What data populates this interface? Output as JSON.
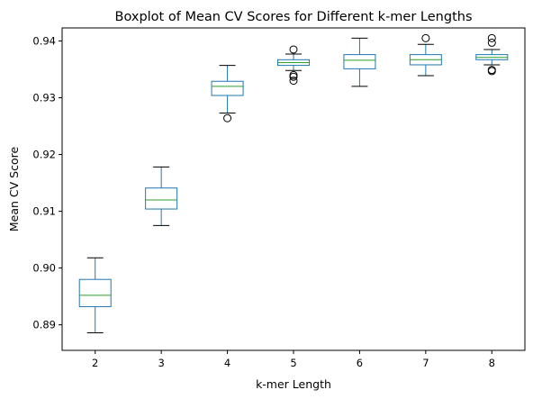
{
  "chart_data": {
    "type": "boxplot",
    "title": "Boxplot of Mean CV Scores for Different k-mer Lengths",
    "xlabel": "k-mer Length",
    "ylabel": "Mean CV Score",
    "ylim": [
      0.8855,
      0.9423
    ],
    "yticks": [
      0.89,
      0.9,
      0.91,
      0.92,
      0.93,
      0.94
    ],
    "ytick_labels": [
      "0.89",
      "0.90",
      "0.91",
      "0.92",
      "0.93",
      "0.94"
    ],
    "grid": false,
    "box_color": "#1f77b4",
    "median_color": "#2ca02c",
    "whisker_color": "#1f77b4",
    "cap_color": "#000000",
    "flier_color": "#000000",
    "categories": [
      "2",
      "3",
      "4",
      "5",
      "6",
      "7",
      "8"
    ],
    "boxes": [
      {
        "label": "2",
        "whislo": 0.8886,
        "q1": 0.8932,
        "med": 0.8952,
        "q3": 0.898,
        "whishi": 0.9018,
        "fliers": []
      },
      {
        "label": "3",
        "whislo": 0.9075,
        "q1": 0.9104,
        "med": 0.912,
        "q3": 0.9141,
        "whishi": 0.9178,
        "fliers": []
      },
      {
        "label": "4",
        "whislo": 0.9273,
        "q1": 0.9304,
        "med": 0.932,
        "q3": 0.9329,
        "whishi": 0.9357,
        "fliers": [
          0.9264
        ]
      },
      {
        "label": "5",
        "whislo": 0.9348,
        "q1": 0.9357,
        "med": 0.9362,
        "q3": 0.9367,
        "whishi": 0.9377,
        "fliers": [
          0.9385,
          0.934,
          0.9337,
          0.933
        ]
      },
      {
        "label": "6",
        "whislo": 0.932,
        "q1": 0.9351,
        "med": 0.9366,
        "q3": 0.9376,
        "whishi": 0.9405,
        "fliers": []
      },
      {
        "label": "7",
        "whislo": 0.9339,
        "q1": 0.9358,
        "med": 0.9367,
        "q3": 0.9376,
        "whishi": 0.9394,
        "fliers": [
          0.9405
        ]
      },
      {
        "label": "8",
        "whislo": 0.9358,
        "q1": 0.9367,
        "med": 0.9371,
        "q3": 0.9376,
        "whishi": 0.9385,
        "fliers": [
          0.9405,
          0.9397,
          0.9349,
          0.9347
        ]
      }
    ]
  }
}
